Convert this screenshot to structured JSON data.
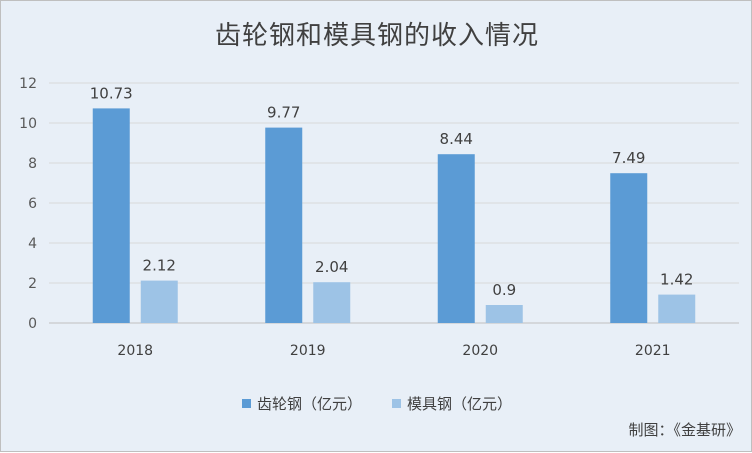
{
  "chart_data": {
    "type": "bar",
    "title": "齿轮钢和模具钢的收入情况",
    "categories": [
      "2018",
      "2019",
      "2020",
      "2021"
    ],
    "series": [
      {
        "name": "齿轮钢（亿元）",
        "values": [
          10.73,
          9.77,
          8.44,
          7.49
        ],
        "labels": [
          "10.73",
          "9.77",
          "8.44",
          "7.49"
        ],
        "color": "#5b9bd5"
      },
      {
        "name": "模具钢（亿元）",
        "values": [
          2.12,
          2.04,
          0.9,
          1.42
        ],
        "labels": [
          "2.12",
          "2.04",
          "0.9",
          "1.42"
        ],
        "color": "#9dc3e6"
      }
    ],
    "ylim": [
      0,
      12
    ],
    "yticks": [
      0,
      2,
      4,
      6,
      8,
      10,
      12
    ],
    "grid": true,
    "legend": "bottom"
  },
  "credit": "制图：《金基研》"
}
